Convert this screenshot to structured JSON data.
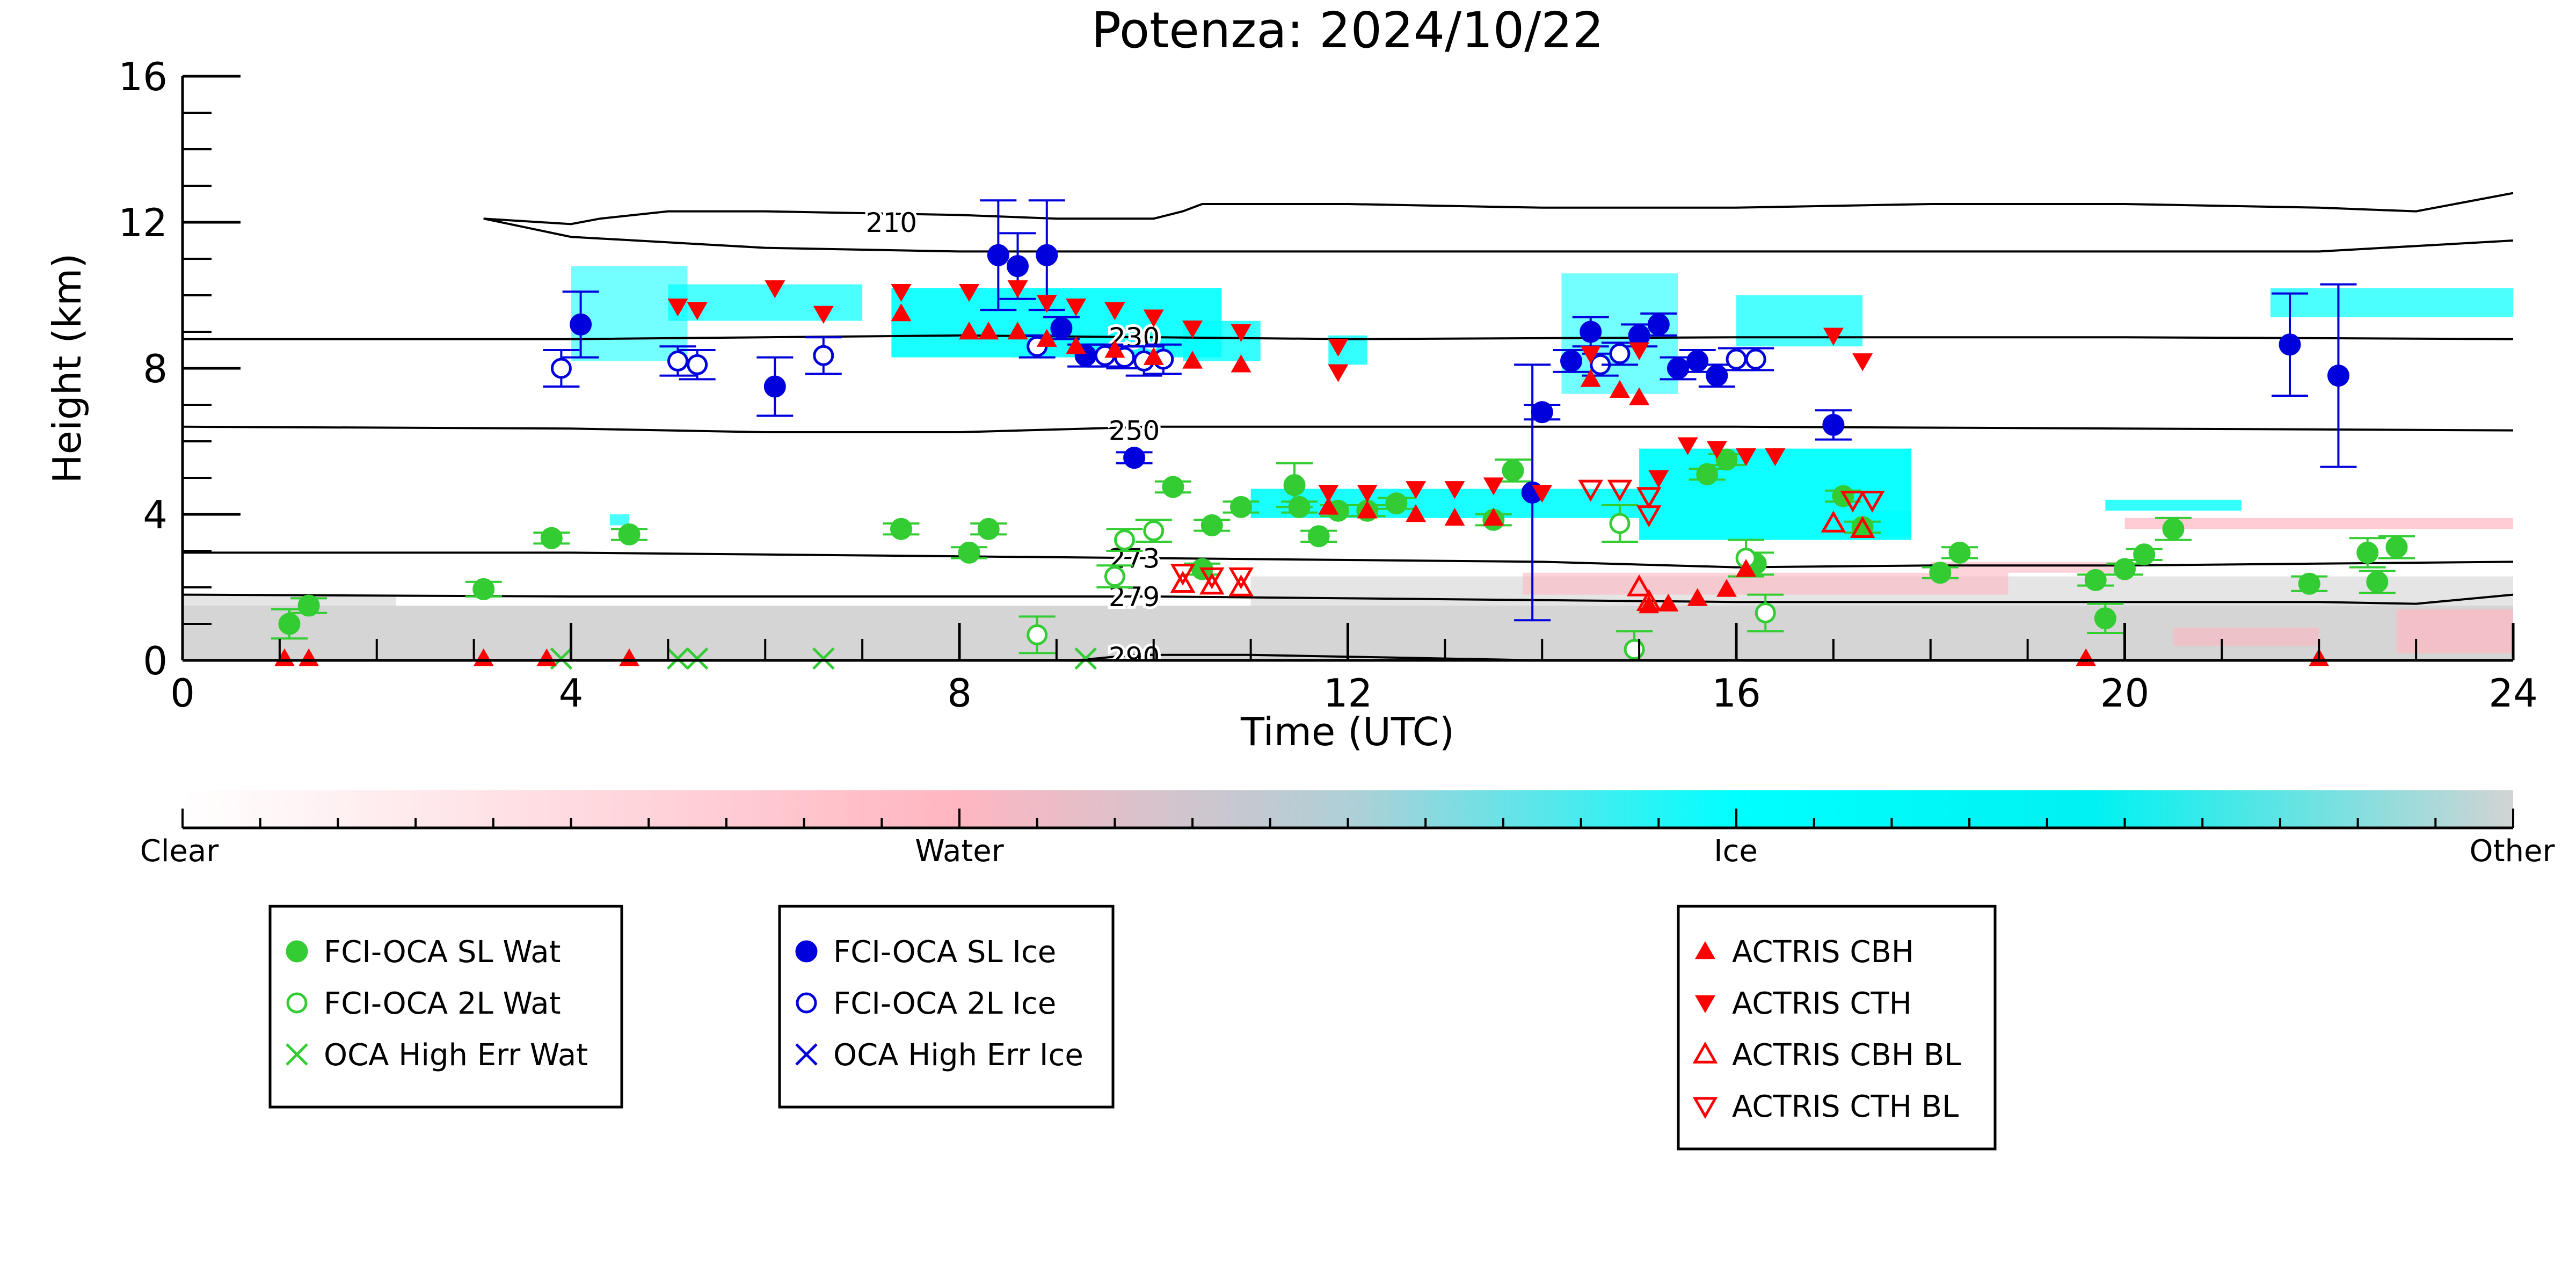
{
  "chart_data": {
    "type": "scatter",
    "title": "Potenza: 2024/10/22",
    "xlabel": "Time (UTC)",
    "ylabel": "Height (km)",
    "xlim": [
      0,
      24
    ],
    "ylim": [
      0,
      16
    ],
    "xticks": [
      0,
      4,
      8,
      12,
      16,
      20,
      24
    ],
    "yticks": [
      0,
      4,
      8,
      12,
      16
    ],
    "grid": false,
    "background_classification": {
      "colorbar_labels": [
        "Clear",
        "Water",
        "Ice",
        "Other"
      ],
      "colors": {
        "Clear": "#ffffff",
        "Water": "#ffb6c1",
        "Ice": "#00ffff",
        "Other": "#d3d3d3"
      }
    },
    "isotherms": [
      {
        "label": "210",
        "x": [
          3.1,
          4.0,
          4.3,
          5.0,
          6.0,
          8.0,
          9.0,
          10.0,
          10.3,
          10.5,
          12.0,
          14.0,
          16.0,
          18.0,
          20.0,
          22.0,
          23.0,
          24.0
        ],
        "y": [
          12.1,
          11.95,
          12.1,
          12.3,
          12.3,
          12.2,
          12.1,
          12.1,
          12.3,
          12.5,
          12.5,
          12.4,
          12.4,
          12.5,
          12.5,
          12.4,
          12.3,
          12.8
        ]
      },
      {
        "label": "",
        "x": [
          3.1,
          4.0,
          6.0,
          8.0,
          10.0,
          12.0,
          14.0,
          16.0,
          18.0,
          20.0,
          22.0,
          24.0
        ],
        "y": [
          12.1,
          11.6,
          11.3,
          11.2,
          11.2,
          11.2,
          11.2,
          11.2,
          11.2,
          11.2,
          11.2,
          11.5
        ]
      },
      {
        "label": "230",
        "x": [
          0,
          4,
          8,
          10,
          12,
          16,
          20,
          24
        ],
        "y": [
          8.8,
          8.8,
          8.9,
          8.85,
          8.8,
          8.85,
          8.85,
          8.8
        ]
      },
      {
        "label": "250",
        "x": [
          0,
          4,
          6,
          8,
          10,
          12,
          16,
          20,
          24
        ],
        "y": [
          6.4,
          6.35,
          6.25,
          6.25,
          6.4,
          6.4,
          6.4,
          6.35,
          6.3
        ]
      },
      {
        "label": "273",
        "x": [
          0,
          4,
          8,
          10,
          12,
          14,
          16,
          18,
          20,
          22,
          24
        ],
        "y": [
          2.95,
          2.95,
          2.85,
          2.8,
          2.75,
          2.7,
          2.55,
          2.6,
          2.6,
          2.65,
          2.7
        ]
      },
      {
        "label": "279",
        "x": [
          0,
          4,
          8,
          10,
          12,
          14,
          16,
          18,
          20,
          22,
          23,
          24
        ],
        "y": [
          1.8,
          1.75,
          1.75,
          1.75,
          1.7,
          1.65,
          1.6,
          1.6,
          1.6,
          1.6,
          1.55,
          1.8
        ]
      },
      {
        "label": "290",
        "x": [
          9.2,
          9.8,
          11,
          12,
          13,
          14,
          15.6
        ],
        "y": [
          0.0,
          0.15,
          0.15,
          0.1,
          0.05,
          0.0,
          0.0
        ]
      }
    ],
    "series": [
      {
        "name": "FCI-OCA SL Wat",
        "marker": "filled-circle",
        "color": "#33cc33",
        "points": [
          {
            "x": 1.1,
            "y": 1.0,
            "err": 0.4
          },
          {
            "x": 1.3,
            "y": 1.5,
            "err": 0.2
          },
          {
            "x": 3.1,
            "y": 1.95,
            "err": 0.2
          },
          {
            "x": 3.8,
            "y": 3.35,
            "err": 0.15
          },
          {
            "x": 4.6,
            "y": 3.45,
            "err": 0.15
          },
          {
            "x": 7.4,
            "y": 3.6,
            "err": 0.15
          },
          {
            "x": 8.1,
            "y": 2.95,
            "err": 0.15
          },
          {
            "x": 8.3,
            "y": 3.6,
            "err": 0.15
          },
          {
            "x": 10.2,
            "y": 4.75,
            "err": 0.15
          },
          {
            "x": 10.5,
            "y": 2.5,
            "err": 0.15
          },
          {
            "x": 10.6,
            "y": 3.7,
            "err": 0.15
          },
          {
            "x": 10.9,
            "y": 4.2,
            "err": 0.15
          },
          {
            "x": 11.5,
            "y": 4.2,
            "err": 0.15
          },
          {
            "x": 11.45,
            "y": 4.8,
            "err": 0.6
          },
          {
            "x": 11.7,
            "y": 3.4,
            "err": 0.15
          },
          {
            "x": 11.9,
            "y": 4.1,
            "err": 0.15
          },
          {
            "x": 12.2,
            "y": 4.1,
            "err": 0.15
          },
          {
            "x": 12.5,
            "y": 4.3,
            "err": 0.15
          },
          {
            "x": 13.5,
            "y": 3.85,
            "err": 0.15
          },
          {
            "x": 13.7,
            "y": 5.2,
            "err": 0.3
          },
          {
            "x": 15.7,
            "y": 5.1,
            "err": 0.15
          },
          {
            "x": 15.9,
            "y": 5.5,
            "err": 0.15
          },
          {
            "x": 16.2,
            "y": 2.65,
            "err": 0.3
          },
          {
            "x": 17.1,
            "y": 4.5,
            "err": 0.15
          },
          {
            "x": 17.3,
            "y": 3.65,
            "err": 0.15
          },
          {
            "x": 18.1,
            "y": 2.4,
            "err": 0.15
          },
          {
            "x": 18.3,
            "y": 2.95,
            "err": 0.15
          },
          {
            "x": 19.7,
            "y": 2.2,
            "err": 0.15
          },
          {
            "x": 19.8,
            "y": 1.15,
            "err": 0.4
          },
          {
            "x": 20.0,
            "y": 2.5,
            "err": 0.15
          },
          {
            "x": 20.2,
            "y": 2.9,
            "err": 0.15
          },
          {
            "x": 20.5,
            "y": 3.6,
            "err": 0.3
          },
          {
            "x": 21.9,
            "y": 2.1,
            "err": 0.2
          },
          {
            "x": 22.5,
            "y": 2.95,
            "err": 0.4
          },
          {
            "x": 22.6,
            "y": 2.15,
            "err": 0.3
          },
          {
            "x": 22.8,
            "y": 3.1,
            "err": 0.3
          }
        ]
      },
      {
        "name": "FCI-OCA 2L Wat",
        "marker": "open-circle",
        "color": "#33cc33",
        "points": [
          {
            "x": 8.8,
            "y": 0.7,
            "err": 0.5
          },
          {
            "x": 9.6,
            "y": 2.3,
            "err": 0.3
          },
          {
            "x": 9.7,
            "y": 3.3,
            "err": 0.3
          },
          {
            "x": 10.0,
            "y": 3.55,
            "err": 0.3
          },
          {
            "x": 14.8,
            "y": 3.75,
            "err": 0.5
          },
          {
            "x": 14.95,
            "y": 0.3,
            "err": 0.5
          },
          {
            "x": 16.1,
            "y": 2.8,
            "err": 0.5
          },
          {
            "x": 16.3,
            "y": 1.3,
            "err": 0.5
          }
        ]
      },
      {
        "name": "OCA High Err Wat",
        "marker": "x",
        "color": "#33cc33",
        "points": [
          {
            "x": 3.9,
            "y": 0.05
          },
          {
            "x": 5.1,
            "y": 0.05
          },
          {
            "x": 5.3,
            "y": 0.05
          },
          {
            "x": 6.6,
            "y": 0.05
          },
          {
            "x": 9.3,
            "y": 0.05
          }
        ]
      },
      {
        "name": "FCI-OCA SL Ice",
        "marker": "filled-circle",
        "color": "#0000dd",
        "points": [
          {
            "x": 4.1,
            "y": 9.2,
            "err": 0.9
          },
          {
            "x": 6.1,
            "y": 7.5,
            "err": 0.8
          },
          {
            "x": 8.4,
            "y": 11.1,
            "err": 1.5
          },
          {
            "x": 8.6,
            "y": 10.8,
            "err": 0.9
          },
          {
            "x": 8.9,
            "y": 11.1,
            "err": 1.5
          },
          {
            "x": 9.05,
            "y": 9.1,
            "err": 0.3
          },
          {
            "x": 9.3,
            "y": 8.35,
            "err": 0.3
          },
          {
            "x": 9.8,
            "y": 5.55,
            "err": 0.15
          },
          {
            "x": 13.9,
            "y": 4.6,
            "err": 3.5
          },
          {
            "x": 14.0,
            "y": 6.8,
            "err": 0.2
          },
          {
            "x": 14.3,
            "y": 8.2,
            "err": 0.3
          },
          {
            "x": 14.5,
            "y": 9.0,
            "err": 0.4
          },
          {
            "x": 15.0,
            "y": 8.9,
            "err": 0.3
          },
          {
            "x": 15.2,
            "y": 9.2,
            "err": 0.3
          },
          {
            "x": 15.4,
            "y": 8.0,
            "err": 0.3
          },
          {
            "x": 15.6,
            "y": 8.2,
            "err": 0.3
          },
          {
            "x": 15.8,
            "y": 7.8,
            "err": 0.3
          },
          {
            "x": 17.0,
            "y": 6.45,
            "err": 0.4
          },
          {
            "x": 21.7,
            "y": 8.65,
            "err": 1.4
          },
          {
            "x": 22.2,
            "y": 7.8,
            "err": 2.5
          }
        ]
      },
      {
        "name": "FCI-OCA 2L Ice",
        "marker": "open-circle",
        "color": "#0000dd",
        "points": [
          {
            "x": 3.9,
            "y": 8.0,
            "err": 0.5
          },
          {
            "x": 5.1,
            "y": 8.2,
            "err": 0.4
          },
          {
            "x": 5.3,
            "y": 8.1,
            "err": 0.4
          },
          {
            "x": 6.6,
            "y": 8.35,
            "err": 0.5
          },
          {
            "x": 8.8,
            "y": 8.6,
            "err": 0.3
          },
          {
            "x": 9.5,
            "y": 8.35,
            "err": 0.3
          },
          {
            "x": 9.7,
            "y": 8.3,
            "err": 0.3
          },
          {
            "x": 9.9,
            "y": 8.2,
            "err": 0.4
          },
          {
            "x": 10.1,
            "y": 8.25,
            "err": 0.4
          },
          {
            "x": 14.6,
            "y": 8.1,
            "err": 0.3
          },
          {
            "x": 14.8,
            "y": 8.4,
            "err": 0.3
          },
          {
            "x": 16.0,
            "y": 8.25,
            "err": 0.3
          },
          {
            "x": 16.2,
            "y": 8.25,
            "err": 0.3
          }
        ]
      },
      {
        "name": "OCA High Err Ice",
        "marker": "x",
        "color": "#0000dd",
        "points": []
      },
      {
        "name": "ACTRIS CBH",
        "marker": "filled-triangle-up",
        "color": "#ff0000",
        "points": [
          {
            "x": 1.05,
            "y": 0.05
          },
          {
            "x": 1.3,
            "y": 0.05
          },
          {
            "x": 3.1,
            "y": 0.05
          },
          {
            "x": 3.75,
            "y": 0.05
          },
          {
            "x": 4.6,
            "y": 0.05
          },
          {
            "x": 7.4,
            "y": 9.5
          },
          {
            "x": 8.1,
            "y": 9.0
          },
          {
            "x": 8.3,
            "y": 9.0
          },
          {
            "x": 8.6,
            "y": 9.0
          },
          {
            "x": 8.9,
            "y": 8.8
          },
          {
            "x": 9.2,
            "y": 8.6
          },
          {
            "x": 9.6,
            "y": 8.5
          },
          {
            "x": 10.0,
            "y": 8.3
          },
          {
            "x": 10.4,
            "y": 8.2
          },
          {
            "x": 10.9,
            "y": 8.1
          },
          {
            "x": 11.8,
            "y": 4.2
          },
          {
            "x": 12.2,
            "y": 4.1
          },
          {
            "x": 12.7,
            "y": 4.0
          },
          {
            "x": 13.1,
            "y": 3.9
          },
          {
            "x": 13.5,
            "y": 3.9
          },
          {
            "x": 14.5,
            "y": 7.7
          },
          {
            "x": 14.8,
            "y": 7.4
          },
          {
            "x": 15.0,
            "y": 7.2
          },
          {
            "x": 15.1,
            "y": 1.5
          },
          {
            "x": 15.3,
            "y": 1.55
          },
          {
            "x": 15.6,
            "y": 1.7
          },
          {
            "x": 15.9,
            "y": 1.95
          },
          {
            "x": 16.1,
            "y": 2.5
          },
          {
            "x": 19.6,
            "y": 0.05
          },
          {
            "x": 22.0,
            "y": 0.05
          }
        ]
      },
      {
        "name": "ACTRIS CTH",
        "marker": "filled-triangle-down",
        "color": "#ff0000",
        "points": [
          {
            "x": 5.1,
            "y": 9.7
          },
          {
            "x": 5.3,
            "y": 9.6
          },
          {
            "x": 6.1,
            "y": 10.2
          },
          {
            "x": 6.6,
            "y": 9.5
          },
          {
            "x": 7.4,
            "y": 10.1
          },
          {
            "x": 8.1,
            "y": 10.1
          },
          {
            "x": 8.6,
            "y": 10.2
          },
          {
            "x": 8.9,
            "y": 9.8
          },
          {
            "x": 9.2,
            "y": 9.7
          },
          {
            "x": 9.6,
            "y": 9.6
          },
          {
            "x": 10.0,
            "y": 9.4
          },
          {
            "x": 10.4,
            "y": 9.1
          },
          {
            "x": 10.9,
            "y": 9.0
          },
          {
            "x": 11.9,
            "y": 8.6
          },
          {
            "x": 11.9,
            "y": 7.9
          },
          {
            "x": 11.8,
            "y": 4.6
          },
          {
            "x": 12.2,
            "y": 4.6
          },
          {
            "x": 12.7,
            "y": 4.7
          },
          {
            "x": 13.1,
            "y": 4.7
          },
          {
            "x": 13.5,
            "y": 4.8
          },
          {
            "x": 14.0,
            "y": 4.6
          },
          {
            "x": 14.5,
            "y": 8.4
          },
          {
            "x": 15.0,
            "y": 8.5
          },
          {
            "x": 15.2,
            "y": 5.0
          },
          {
            "x": 15.5,
            "y": 5.9
          },
          {
            "x": 15.8,
            "y": 5.8
          },
          {
            "x": 16.1,
            "y": 5.6
          },
          {
            "x": 16.4,
            "y": 5.6
          },
          {
            "x": 17.0,
            "y": 8.9
          },
          {
            "x": 17.3,
            "y": 8.2
          }
        ]
      },
      {
        "name": "ACTRIS CBH BL",
        "marker": "open-triangle-up",
        "color": "#ff0000",
        "points": [
          {
            "x": 10.3,
            "y": 2.1
          },
          {
            "x": 10.6,
            "y": 2.05
          },
          {
            "x": 10.9,
            "y": 2.0
          },
          {
            "x": 15.0,
            "y": 2.0
          },
          {
            "x": 15.1,
            "y": 1.6
          },
          {
            "x": 17.0,
            "y": 3.75
          },
          {
            "x": 17.3,
            "y": 3.6
          }
        ]
      },
      {
        "name": "ACTRIS CTH BL",
        "marker": "open-triangle-down",
        "color": "#ff0000",
        "points": [
          {
            "x": 10.3,
            "y": 2.4
          },
          {
            "x": 10.6,
            "y": 2.3
          },
          {
            "x": 10.9,
            "y": 2.3
          },
          {
            "x": 14.5,
            "y": 4.7
          },
          {
            "x": 14.8,
            "y": 4.7
          },
          {
            "x": 15.1,
            "y": 4.5
          },
          {
            "x": 15.1,
            "y": 4.0
          },
          {
            "x": 17.2,
            "y": 4.4
          },
          {
            "x": 17.4,
            "y": 4.4
          }
        ]
      }
    ]
  }
}
